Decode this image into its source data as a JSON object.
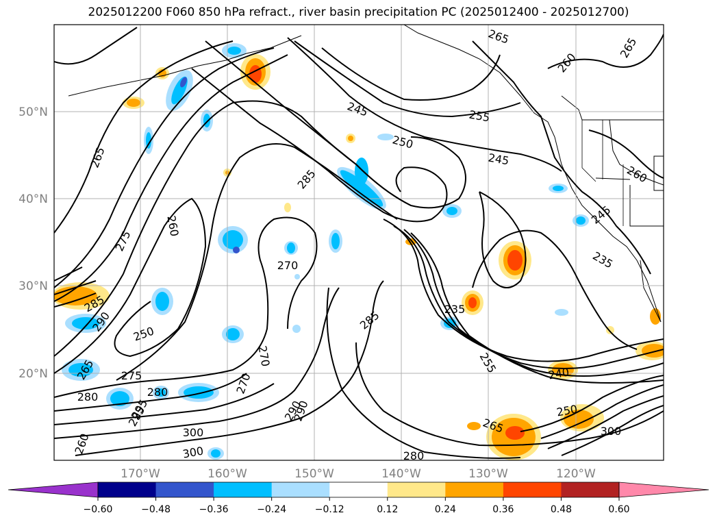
{
  "title": "2025012200 F060 850 hPa refract., river basin precipitation PC (2025012400 - 2025012700)",
  "lat_labels": [
    "50°N",
    "40°N",
    "30°N",
    "20°N"
  ],
  "lon_labels": [
    "170°W",
    "160°W",
    "150°W",
    "140°W",
    "130°W",
    "120°W"
  ],
  "contour_labels": [
    "265",
    "260",
    "285",
    "275",
    "260",
    "265",
    "290",
    "250",
    "280",
    "275",
    "270",
    "285",
    "290",
    "295",
    "300",
    "270",
    "245",
    "255",
    "250",
    "245",
    "260",
    "265",
    "265",
    "260",
    "245",
    "235",
    "285",
    "235",
    "255",
    "240",
    "250",
    "265",
    "280",
    "300",
    "300",
    "280",
    "290",
    "295",
    "270"
  ],
  "colorbar": {
    "ticks": [
      "−0.60",
      "−0.48",
      "−0.36",
      "−0.24",
      "−0.12",
      "0.12",
      "0.24",
      "0.36",
      "0.48",
      "0.60"
    ],
    "colors": [
      "#9932cc",
      "#00008b",
      "#3355cc",
      "#00bfff",
      "#aadfff",
      "#ffffff",
      "#ffe88a",
      "#ffa500",
      "#ff4500",
      "#b22222",
      "#ff88aa"
    ]
  }
}
